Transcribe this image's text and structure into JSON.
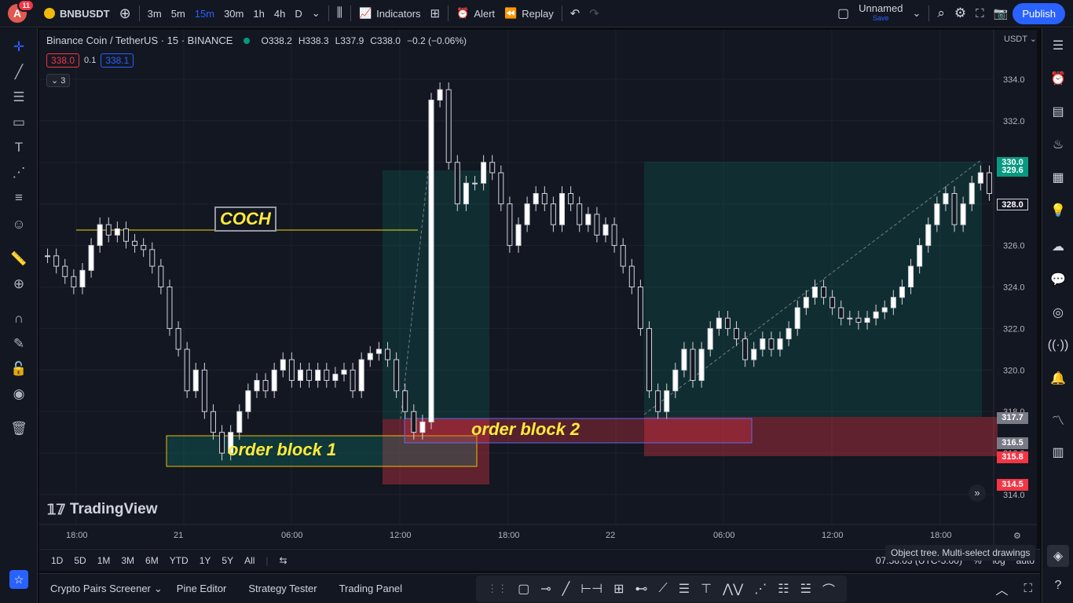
{
  "topbar": {
    "avatar_letter": "A",
    "notifications": "11",
    "symbol": "BNBUSDT",
    "timeframes": [
      "3m",
      "5m",
      "15m",
      "30m",
      "1h",
      "4h",
      "D"
    ],
    "active_timeframe": "15m",
    "indicators": "Indicators",
    "alert": "Alert",
    "replay": "Replay",
    "layout_name": "Unnamed",
    "layout_save": "Save",
    "publish": "Publish"
  },
  "legend": {
    "title": "Binance Coin / TetherUS · 15 · BINANCE",
    "open": "O338.2",
    "high": "H338.3",
    "low": "L337.9",
    "close": "C338.0",
    "change": "−0.2 (−0.06%)",
    "bid": "338.0",
    "spread": "0.1",
    "ask": "338.1",
    "collapsed_count": "3"
  },
  "chart_data": {
    "type": "candlestick",
    "currency": "USDT",
    "y_ticks": [
      "334.0",
      "332.0",
      "330.0",
      "328.0",
      "326.0",
      "324.0",
      "322.0",
      "320.0",
      "318.0",
      "316.0",
      "314.0"
    ],
    "x_ticks": [
      "18:00",
      "21",
      "06:00",
      "12:00",
      "18:00",
      "22",
      "06:00",
      "12:00",
      "18:00"
    ],
    "ylim": [
      313.5,
      335.5
    ],
    "price_tags": [
      {
        "value": "330.0",
        "color": "#089981"
      },
      {
        "value": "329.6",
        "color": "#089981"
      },
      {
        "value": "328.0",
        "color": "#131722"
      },
      {
        "value": "317.7",
        "color": "#787b86"
      },
      {
        "value": "316.5",
        "color": "#787b86"
      },
      {
        "value": "315.8",
        "color": "#f23645"
      },
      {
        "value": "314.5",
        "color": "#f23645"
      }
    ],
    "annotations": {
      "coch": "COCH",
      "order_block_1": "order block 1",
      "order_block_2": "order block 2"
    },
    "watermark": "TradingView"
  },
  "timeframe_bar": {
    "ranges": [
      "1D",
      "5D",
      "1M",
      "3M",
      "6M",
      "YTD",
      "1Y",
      "5Y",
      "All"
    ],
    "clock": "07:56:03 (UTC-5:00)",
    "percent": "%",
    "log": "log",
    "auto": "auto"
  },
  "bottombar": {
    "tabs": [
      "Crypto Pairs Screener",
      "Pine Editor",
      "Strategy Tester",
      "Trading Panel"
    ]
  },
  "tooltip": "Object tree. Multi-select drawings"
}
